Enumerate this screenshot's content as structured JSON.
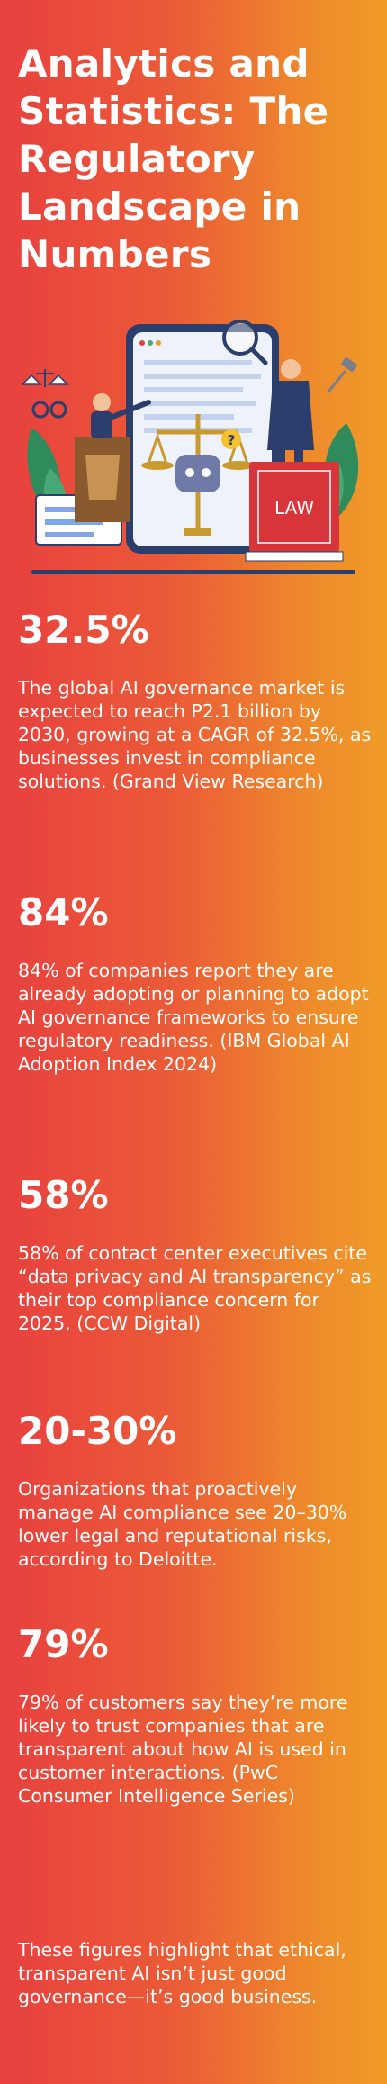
{
  "title": "Analytics and Statistics: The Regulatory Landscape in Numbers",
  "illustration": {
    "book_label": "LAW"
  },
  "stats": [
    {
      "value": "32.5%",
      "text": "The global AI governance market is expected to reach P2.1 billion by 2030, growing at a CAGR of 32.5%, as businesses invest in compliance solutions. (Grand View Research)"
    },
    {
      "value": "84%",
      "text": "84% of companies report they are already adopting or planning to adopt AI governance frameworks to ensure regulatory readiness. (IBM Global AI Adoption Index 2024)"
    },
    {
      "value": "58%",
      "text": "58% of contact center executives cite “data privacy and AI transparency” as their top compliance concern for 2025. (CCW Digital)"
    },
    {
      "value": "20-30%",
      "text": "Organizations that proactively manage AI compliance see 20–30% lower legal and reputational risks, according to Deloitte."
    },
    {
      "value": "79%",
      "text": "79% of customers say they’re more likely to trust companies that are transparent about how AI is used in customer interactions. (PwC Consumer Intelligence Series)"
    }
  ],
  "closing": "These figures highlight that ethical, transparent AI isn’t just good governance—it’s good business.",
  "colors": {
    "gradient_left": "#e8403f",
    "gradient_right": "#f09b28",
    "text": "#ffffff"
  }
}
